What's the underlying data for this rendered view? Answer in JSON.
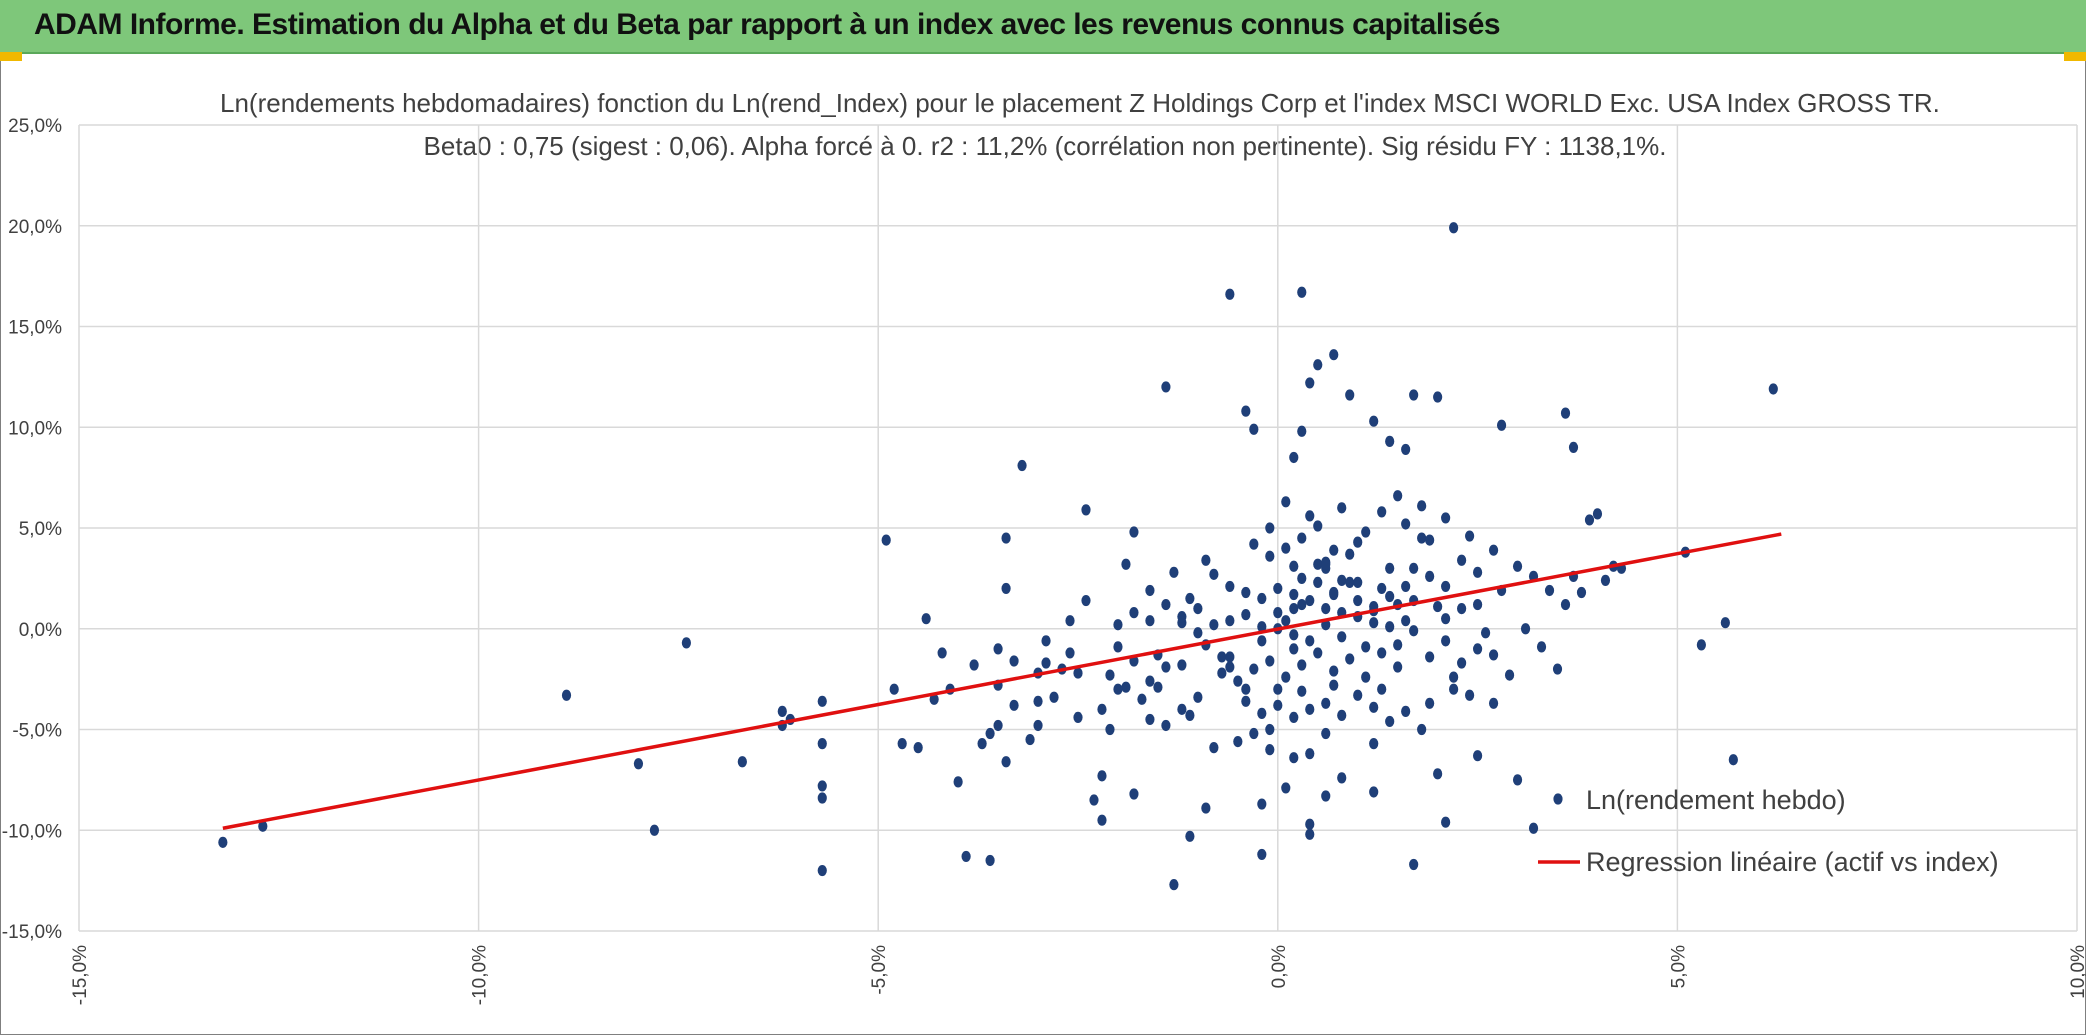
{
  "header": {
    "title": "ADAM Informe. Estimation du Alpha et du Beta par rapport à un index avec les revenus connus capitalisés"
  },
  "colors": {
    "banner": "#7ec77a",
    "points": "#1f3f78",
    "regression": "#e01010",
    "grid": "#d9d9d9"
  },
  "chart_data": {
    "type": "scatter",
    "title_line1": "Ln(rendements hebdomadaires) fonction du Ln(rend_Index) pour le placement Z Holdings Corp et l'index MSCI WORLD Exc. USA Index GROSS TR.",
    "title_line2": "Beta0 : 0,75 (sigest : 0,06). Alpha forcé à 0. r2 : 11,2% (corrélation non pertinente). Sig résidu FY : 1138,1%.",
    "xlim": [
      -0.15,
      0.1
    ],
    "ylim": [
      -0.15,
      0.25
    ],
    "x_ticks": [
      -0.15,
      -0.1,
      -0.05,
      0.0,
      0.05,
      0.1
    ],
    "x_tick_labels": [
      "-15,0%",
      "-10,0%",
      "-5,0%",
      "0,0%",
      "5,0%",
      "10,0%"
    ],
    "y_ticks": [
      -0.15,
      -0.1,
      -0.05,
      0.0,
      0.05,
      0.1,
      0.15,
      0.2,
      0.25
    ],
    "y_tick_labels": [
      "-15,0%",
      "-10,0%",
      "-5,0%",
      "0,0%",
      "5,0%",
      "10,0%",
      "15,0%",
      "20,0%",
      "25,0%"
    ],
    "grid": true,
    "legend_position": "bottom-right",
    "series": [
      {
        "name": "Ln(rendement hebdo)",
        "kind": "scatter",
        "points": [
          [
            -0.132,
            -0.106
          ],
          [
            -0.127,
            -0.098
          ],
          [
            -0.089,
            -0.033
          ],
          [
            -0.08,
            -0.067
          ],
          [
            -0.078,
            -0.1
          ],
          [
            -0.074,
            -0.007
          ],
          [
            -0.067,
            -0.066
          ],
          [
            -0.062,
            -0.041
          ],
          [
            -0.062,
            -0.048
          ],
          [
            -0.061,
            -0.045
          ],
          [
            -0.057,
            -0.036
          ],
          [
            -0.057,
            -0.057
          ],
          [
            -0.057,
            -0.078
          ],
          [
            -0.057,
            -0.084
          ],
          [
            -0.057,
            -0.12
          ],
          [
            -0.049,
            0.044
          ],
          [
            -0.048,
            -0.03
          ],
          [
            -0.047,
            -0.057
          ],
          [
            -0.045,
            -0.059
          ],
          [
            -0.044,
            0.005
          ],
          [
            -0.043,
            -0.035
          ],
          [
            -0.042,
            -0.012
          ],
          [
            -0.041,
            -0.03
          ],
          [
            -0.04,
            -0.076
          ],
          [
            -0.039,
            -0.113
          ],
          [
            -0.038,
            -0.018
          ],
          [
            -0.037,
            -0.057
          ],
          [
            -0.036,
            -0.052
          ],
          [
            -0.036,
            -0.115
          ],
          [
            -0.035,
            -0.028
          ],
          [
            -0.035,
            -0.048
          ],
          [
            -0.035,
            -0.01
          ],
          [
            -0.034,
            0.02
          ],
          [
            -0.034,
            -0.066
          ],
          [
            -0.034,
            0.045
          ],
          [
            -0.033,
            -0.038
          ],
          [
            -0.033,
            -0.016
          ],
          [
            -0.032,
            0.081
          ],
          [
            -0.031,
            -0.055
          ],
          [
            -0.03,
            -0.048
          ],
          [
            -0.03,
            -0.036
          ],
          [
            -0.03,
            -0.022
          ],
          [
            -0.029,
            -0.006
          ],
          [
            -0.029,
            -0.017
          ],
          [
            -0.028,
            -0.034
          ],
          [
            -0.027,
            -0.02
          ],
          [
            -0.026,
            0.004
          ],
          [
            -0.026,
            -0.012
          ],
          [
            -0.025,
            -0.044
          ],
          [
            -0.025,
            -0.022
          ],
          [
            -0.024,
            0.014
          ],
          [
            -0.024,
            0.059
          ],
          [
            -0.023,
            -0.085
          ],
          [
            -0.022,
            -0.073
          ],
          [
            -0.022,
            -0.095
          ],
          [
            -0.022,
            -0.04
          ],
          [
            -0.021,
            -0.05
          ],
          [
            -0.021,
            -0.023
          ],
          [
            -0.02,
            -0.009
          ],
          [
            -0.019,
            -0.029
          ],
          [
            -0.019,
            0.032
          ],
          [
            -0.018,
            -0.082
          ],
          [
            -0.018,
            0.048
          ],
          [
            -0.017,
            -0.035
          ],
          [
            -0.016,
            -0.045
          ],
          [
            -0.016,
            0.004
          ],
          [
            -0.015,
            -0.029
          ],
          [
            -0.015,
            -0.013
          ],
          [
            -0.014,
            -0.019
          ],
          [
            -0.013,
            0.028
          ],
          [
            -0.012,
            -0.018
          ],
          [
            -0.012,
            0.003
          ],
          [
            -0.011,
            -0.043
          ],
          [
            -0.011,
            0.015
          ],
          [
            -0.01,
            -0.002
          ],
          [
            -0.009,
            -0.089
          ],
          [
            -0.009,
            0.034
          ],
          [
            -0.009,
            -0.008
          ],
          [
            -0.008,
            0.002
          ],
          [
            -0.008,
            -0.059
          ],
          [
            -0.007,
            -0.014
          ],
          [
            -0.006,
            -0.014
          ],
          [
            -0.006,
            -0.019
          ],
          [
            -0.005,
            -0.056
          ],
          [
            -0.004,
            0.108
          ],
          [
            -0.004,
            -0.03
          ],
          [
            -0.003,
            0.099
          ],
          [
            -0.003,
            -0.052
          ],
          [
            -0.002,
            -0.087
          ],
          [
            -0.002,
            -0.006
          ],
          [
            -0.001,
            -0.05
          ],
          [
            -0.001,
            -0.06
          ],
          [
            0.0,
            -0.038
          ],
          [
            0.0,
            0.0
          ],
          [
            0.001,
            -0.079
          ],
          [
            0.001,
            0.004
          ],
          [
            0.002,
            0.085
          ],
          [
            0.002,
            -0.064
          ],
          [
            0.002,
            -0.01
          ],
          [
            0.002,
            0.01
          ],
          [
            0.002,
            0.031
          ],
          [
            0.003,
            0.012
          ],
          [
            0.003,
            -0.031
          ],
          [
            0.003,
            0.025
          ],
          [
            0.004,
            -0.062
          ],
          [
            0.005,
            0.032
          ],
          [
            0.005,
            0.023
          ],
          [
            0.006,
            0.033
          ],
          [
            0.006,
            -0.052
          ],
          [
            0.006,
            0.03
          ],
          [
            0.006,
            0.032
          ],
          [
            0.007,
            0.017
          ],
          [
            0.007,
            0.018
          ],
          [
            0.007,
            -0.021
          ],
          [
            0.008,
            0.024
          ],
          [
            0.009,
            0.023
          ],
          [
            0.01,
            0.023
          ],
          [
            0.01,
            0.043
          ],
          [
            0.011,
            -0.009
          ],
          [
            0.012,
            -0.057
          ],
          [
            0.012,
            0.009
          ],
          [
            0.013,
            0.02
          ],
          [
            0.013,
            -0.012
          ],
          [
            0.014,
            0.03
          ],
          [
            0.015,
            0.012
          ],
          [
            0.015,
            -0.008
          ],
          [
            0.016,
            0.004
          ],
          [
            0.017,
            0.014
          ],
          [
            0.018,
            0.045
          ],
          [
            0.019,
            0.044
          ],
          [
            0.019,
            -0.037
          ],
          [
            0.02,
            0.011
          ],
          [
            0.021,
            0.005
          ],
          [
            0.022,
            -0.024
          ],
          [
            0.022,
            -0.03
          ],
          [
            0.023,
            0.01
          ],
          [
            0.024,
            -0.033
          ],
          [
            0.025,
            0.012
          ],
          [
            0.026,
            -0.002
          ],
          [
            0.027,
            -0.037
          ],
          [
            0.028,
            0.019
          ],
          [
            0.029,
            -0.023
          ],
          [
            0.03,
            0.031
          ],
          [
            0.031,
            0.0
          ],
          [
            0.032,
            0.026
          ],
          [
            0.033,
            -0.009
          ],
          [
            0.034,
            0.019
          ],
          [
            0.035,
            -0.02
          ],
          [
            0.036,
            0.012
          ],
          [
            0.037,
            0.026
          ],
          [
            0.038,
            0.018
          ],
          [
            0.039,
            0.054
          ],
          [
            0.04,
            0.057
          ],
          [
            0.041,
            0.024
          ],
          [
            0.042,
            0.031
          ],
          [
            0.043,
            0.03
          ],
          [
            0.051,
            0.038
          ],
          [
            0.053,
            -0.008
          ],
          [
            0.056,
            0.003
          ],
          [
            0.057,
            -0.065
          ],
          [
            0.062,
            0.119
          ],
          [
            -0.011,
            -0.103
          ],
          [
            -0.006,
            0.166
          ],
          [
            -0.013,
            -0.127
          ],
          [
            -0.014,
            0.12
          ],
          [
            0.003,
            0.167
          ],
          [
            0.022,
            0.199
          ],
          [
            0.005,
            0.131
          ],
          [
            0.007,
            0.136
          ],
          [
            0.012,
            0.103
          ],
          [
            0.017,
            0.116
          ],
          [
            0.02,
            0.115
          ],
          [
            0.036,
            0.107
          ],
          [
            0.037,
            0.09
          ],
          [
            0.028,
            0.101
          ],
          [
            0.016,
            0.089
          ],
          [
            0.014,
            0.093
          ],
          [
            0.009,
            0.116
          ],
          [
            0.004,
            0.122
          ],
          [
            0.003,
            0.098
          ],
          [
            -0.002,
            -0.112
          ],
          [
            0.004,
            -0.102
          ],
          [
            0.004,
            -0.097
          ],
          [
            0.017,
            -0.117
          ],
          [
            0.021,
            -0.096
          ],
          [
            0.032,
            -0.099
          ],
          [
            0.03,
            -0.075
          ],
          [
            0.025,
            -0.063
          ],
          [
            0.02,
            -0.072
          ],
          [
            0.012,
            -0.081
          ],
          [
            0.008,
            -0.074
          ],
          [
            0.006,
            -0.083
          ],
          [
            -0.003,
            0.042
          ],
          [
            -0.001,
            0.05
          ],
          [
            0.001,
            0.063
          ],
          [
            0.004,
            0.056
          ],
          [
            0.008,
            0.06
          ],
          [
            0.011,
            0.048
          ],
          [
            0.013,
            0.058
          ],
          [
            0.015,
            0.066
          ],
          [
            0.016,
            0.052
          ],
          [
            0.018,
            0.061
          ],
          [
            0.021,
            0.055
          ],
          [
            0.024,
            0.046
          ],
          [
            -0.008,
            0.027
          ],
          [
            -0.006,
            0.021
          ],
          [
            -0.004,
            0.018
          ],
          [
            -0.002,
            0.015
          ],
          [
            0.0,
            0.02
          ],
          [
            0.002,
            0.017
          ],
          [
            0.004,
            0.014
          ],
          [
            0.006,
            0.01
          ],
          [
            0.008,
            0.008
          ],
          [
            0.01,
            0.006
          ],
          [
            0.012,
            0.003
          ],
          [
            0.014,
            0.001
          ],
          [
            -0.007,
            -0.022
          ],
          [
            -0.005,
            -0.026
          ],
          [
            -0.003,
            -0.02
          ],
          [
            -0.001,
            -0.016
          ],
          [
            0.001,
            -0.024
          ],
          [
            0.003,
            -0.018
          ],
          [
            0.005,
            -0.012
          ],
          [
            0.007,
            -0.028
          ],
          [
            0.009,
            -0.015
          ],
          [
            0.011,
            -0.024
          ],
          [
            0.013,
            -0.03
          ],
          [
            0.015,
            -0.019
          ],
          [
            -0.01,
            0.01
          ],
          [
            -0.012,
            0.006
          ],
          [
            -0.014,
            0.012
          ],
          [
            -0.016,
            0.019
          ],
          [
            -0.018,
            0.008
          ],
          [
            -0.02,
            0.002
          ],
          [
            -0.01,
            -0.034
          ],
          [
            -0.012,
            -0.04
          ],
          [
            -0.014,
            -0.048
          ],
          [
            -0.016,
            -0.026
          ],
          [
            -0.018,
            -0.016
          ],
          [
            -0.02,
            -0.03
          ],
          [
            0.017,
            0.03
          ],
          [
            0.019,
            0.026
          ],
          [
            0.021,
            0.021
          ],
          [
            0.023,
            0.034
          ],
          [
            0.025,
            0.028
          ],
          [
            0.027,
            0.039
          ],
          [
            0.017,
            -0.001
          ],
          [
            0.019,
            -0.014
          ],
          [
            0.021,
            -0.006
          ],
          [
            0.023,
            -0.017
          ],
          [
            0.025,
            -0.01
          ],
          [
            0.027,
            -0.013
          ],
          [
            -0.001,
            0.036
          ],
          [
            0.001,
            0.04
          ],
          [
            0.003,
            0.045
          ],
          [
            0.005,
            0.051
          ],
          [
            0.007,
            0.039
          ],
          [
            0.009,
            0.037
          ],
          [
            -0.004,
            -0.036
          ],
          [
            -0.002,
            -0.042
          ],
          [
            0.0,
            -0.03
          ],
          [
            0.002,
            -0.044
          ],
          [
            0.004,
            -0.04
          ],
          [
            0.006,
            -0.037
          ],
          [
            0.008,
            -0.043
          ],
          [
            0.01,
            -0.033
          ],
          [
            0.012,
            -0.039
          ],
          [
            0.014,
            -0.046
          ],
          [
            0.016,
            -0.041
          ],
          [
            0.018,
            -0.05
          ],
          [
            -0.006,
            0.004
          ],
          [
            -0.004,
            0.007
          ],
          [
            -0.002,
            0.001
          ],
          [
            0.0,
            0.008
          ],
          [
            0.002,
            -0.003
          ],
          [
            0.004,
            -0.006
          ],
          [
            0.006,
            0.002
          ],
          [
            0.008,
            -0.004
          ],
          [
            0.01,
            0.014
          ],
          [
            0.012,
            0.011
          ],
          [
            0.014,
            0.016
          ],
          [
            0.016,
            0.021
          ]
        ]
      },
      {
        "name": "Regression linéaire (actif vs index)",
        "kind": "line",
        "x": [
          -0.132,
          0.063
        ],
        "y": [
          -0.099,
          0.047
        ]
      }
    ]
  }
}
